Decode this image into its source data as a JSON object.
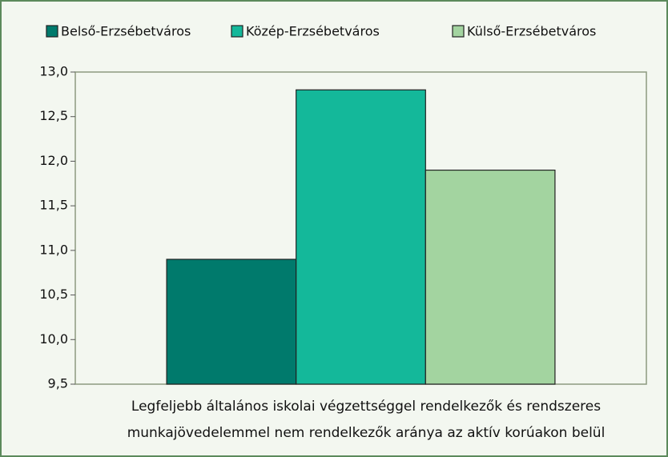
{
  "chart_data": {
    "type": "bar",
    "categories": [
      "Legfeljebb általános iskolai végzettséggel rendelkezők és rendszeres munkajövedelemmel nem rendelkezők aránya az aktív korúakon belül"
    ],
    "series": [
      {
        "name": "Belső-Erzsébetváros",
        "color": "#007a6c",
        "values": [
          10.9
        ]
      },
      {
        "name": "Közép-Erzsébetváros",
        "color": "#14b89a",
        "values": [
          12.8
        ]
      },
      {
        "name": "Külső-Erzsébetváros",
        "color": "#a3d4a0",
        "values": [
          11.9
        ]
      }
    ],
    "ylim": [
      9.5,
      13.0
    ],
    "yticks": [
      {
        "value": 9.5,
        "label": "9,5"
      },
      {
        "value": 10.0,
        "label": "10,0"
      },
      {
        "value": 10.5,
        "label": "10,5"
      },
      {
        "value": 11.0,
        "label": "11,0"
      },
      {
        "value": 11.5,
        "label": "11,5"
      },
      {
        "value": 12.0,
        "label": "12,0"
      },
      {
        "value": 12.5,
        "label": "12,5"
      },
      {
        "value": 13.0,
        "label": "13,0"
      }
    ],
    "grid": false,
    "legend": "top"
  }
}
